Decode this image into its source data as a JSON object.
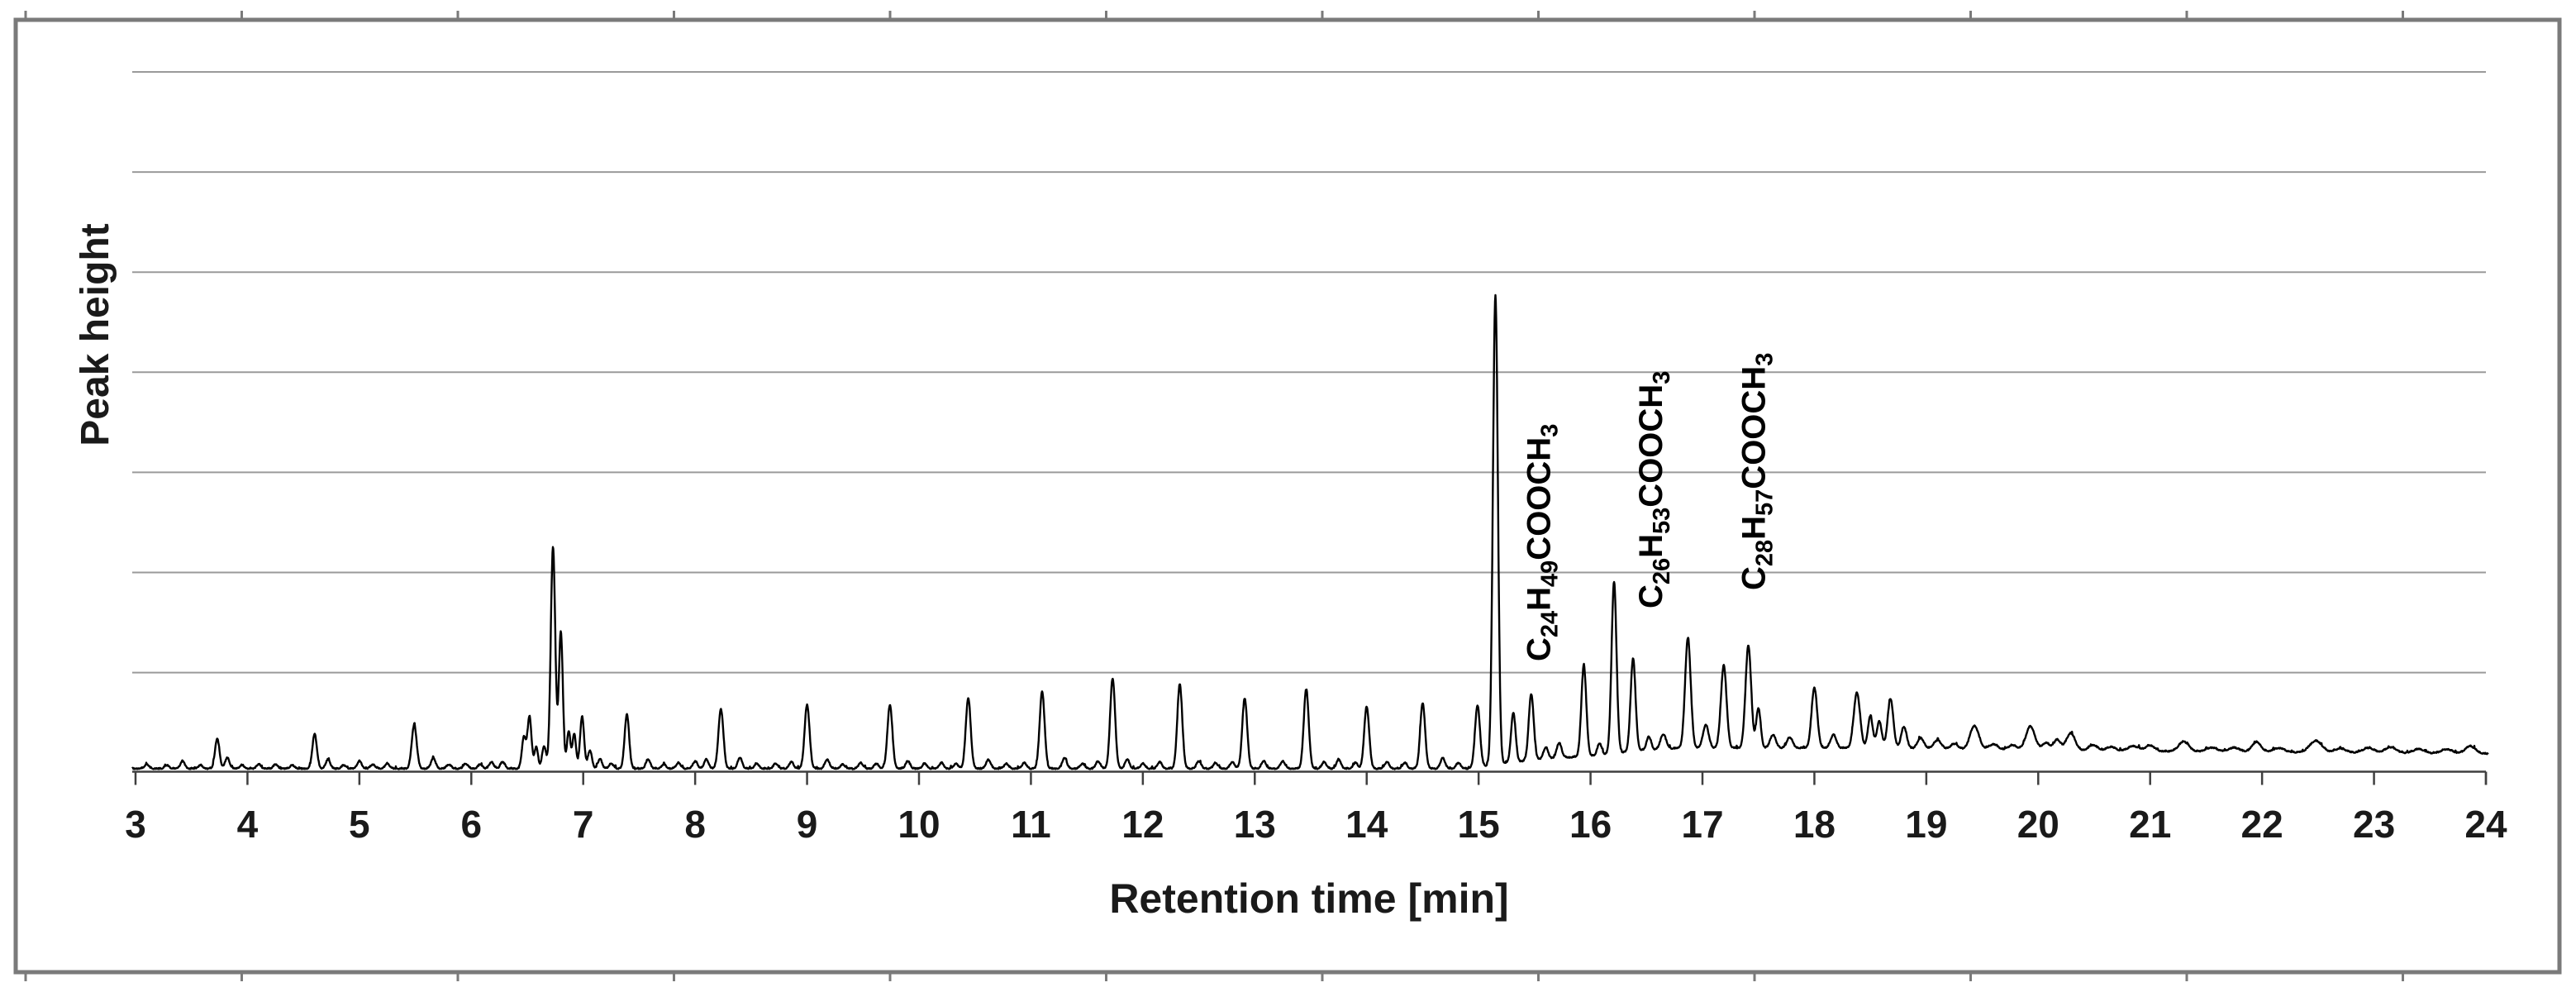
{
  "chart_data": {
    "type": "line",
    "subtype": "gas-chromatogram",
    "title": "",
    "xlabel": "Retention time [min]",
    "ylabel": "Peak height",
    "x_ticks": [
      3,
      4,
      5,
      6,
      7,
      8,
      9,
      10,
      11,
      12,
      13,
      14,
      15,
      16,
      17,
      18,
      19,
      20,
      21,
      22,
      23,
      24
    ],
    "x_range": [
      2.97,
      24.02
    ],
    "y_tick_labels": [],
    "y_gridline_count": 7,
    "grid": true,
    "legend": null,
    "units_note": "peak heights in arbitrary units above local baseline; no numeric y scale shown",
    "baseline_offsets": [
      [
        2.97,
        3
      ],
      [
        14.9,
        3
      ],
      [
        15.25,
        10
      ],
      [
        15.6,
        15
      ],
      [
        16.0,
        18
      ],
      [
        16.45,
        25
      ],
      [
        16.8,
        28
      ],
      [
        18.6,
        28
      ],
      [
        19.2,
        26
      ],
      [
        20.0,
        25
      ],
      [
        21.0,
        24
      ],
      [
        22.0,
        23
      ],
      [
        23.0,
        22
      ],
      [
        24.02,
        21
      ]
    ],
    "peaks": [
      [
        3.1,
        5,
        0.02
      ],
      [
        3.28,
        4,
        0.02
      ],
      [
        3.42,
        9,
        0.02
      ],
      [
        3.58,
        4,
        0.02
      ],
      [
        3.73,
        36,
        0.02
      ],
      [
        3.82,
        13,
        0.02
      ],
      [
        3.95,
        4,
        0.02
      ],
      [
        4.1,
        5,
        0.02
      ],
      [
        4.25,
        5,
        0.02
      ],
      [
        4.4,
        4,
        0.02
      ],
      [
        4.6,
        42,
        0.02
      ],
      [
        4.72,
        11,
        0.02
      ],
      [
        4.86,
        4,
        0.02
      ],
      [
        5.0,
        9,
        0.02
      ],
      [
        5.12,
        5,
        0.02
      ],
      [
        5.25,
        6,
        0.02
      ],
      [
        5.49,
        53,
        0.022
      ],
      [
        5.66,
        13,
        0.02
      ],
      [
        5.8,
        5,
        0.02
      ],
      [
        5.95,
        6,
        0.02
      ],
      [
        6.08,
        5,
        0.02
      ],
      [
        6.18,
        8,
        0.02
      ],
      [
        6.28,
        8,
        0.02
      ],
      [
        6.47,
        38,
        0.018
      ],
      [
        6.52,
        62,
        0.018
      ],
      [
        6.58,
        26,
        0.016
      ],
      [
        6.65,
        27,
        0.018
      ],
      [
        6.73,
        268,
        0.02
      ],
      [
        6.8,
        165,
        0.018
      ],
      [
        6.87,
        45,
        0.016
      ],
      [
        6.92,
        42,
        0.016
      ],
      [
        6.99,
        63,
        0.018
      ],
      [
        7.06,
        22,
        0.018
      ],
      [
        7.15,
        12,
        0.018
      ],
      [
        7.25,
        6,
        0.02
      ],
      [
        7.39,
        66,
        0.02
      ],
      [
        7.58,
        11,
        0.02
      ],
      [
        7.72,
        5,
        0.02
      ],
      [
        7.85,
        7,
        0.02
      ],
      [
        8.0,
        9,
        0.02
      ],
      [
        8.1,
        11,
        0.02
      ],
      [
        8.23,
        72,
        0.022
      ],
      [
        8.4,
        13,
        0.02
      ],
      [
        8.55,
        6,
        0.02
      ],
      [
        8.72,
        6,
        0.02
      ],
      [
        8.86,
        8,
        0.02
      ],
      [
        9.0,
        77,
        0.022
      ],
      [
        9.18,
        11,
        0.02
      ],
      [
        9.32,
        5,
        0.02
      ],
      [
        9.48,
        7,
        0.02
      ],
      [
        9.62,
        6,
        0.02
      ],
      [
        9.74,
        77,
        0.022
      ],
      [
        9.9,
        9,
        0.02
      ],
      [
        10.05,
        6,
        0.02
      ],
      [
        10.2,
        7,
        0.02
      ],
      [
        10.33,
        6,
        0.02
      ],
      [
        10.44,
        85,
        0.022
      ],
      [
        10.62,
        11,
        0.02
      ],
      [
        10.78,
        6,
        0.02
      ],
      [
        10.94,
        7,
        0.02
      ],
      [
        11.1,
        93,
        0.022
      ],
      [
        11.3,
        13,
        0.02
      ],
      [
        11.46,
        6,
        0.02
      ],
      [
        11.6,
        9,
        0.02
      ],
      [
        11.73,
        109,
        0.022
      ],
      [
        11.86,
        11,
        0.02
      ],
      [
        12.0,
        6,
        0.02
      ],
      [
        12.15,
        8,
        0.02
      ],
      [
        12.33,
        102,
        0.022
      ],
      [
        12.5,
        9,
        0.02
      ],
      [
        12.65,
        7,
        0.02
      ],
      [
        12.8,
        8,
        0.02
      ],
      [
        12.91,
        85,
        0.022
      ],
      [
        13.08,
        9,
        0.02
      ],
      [
        13.25,
        9,
        0.02
      ],
      [
        13.46,
        96,
        0.022
      ],
      [
        13.62,
        8,
        0.02
      ],
      [
        13.75,
        11,
        0.02
      ],
      [
        13.9,
        7,
        0.02
      ],
      [
        14.0,
        75,
        0.022
      ],
      [
        14.18,
        8,
        0.02
      ],
      [
        14.34,
        7,
        0.02
      ],
      [
        14.5,
        79,
        0.022
      ],
      [
        14.68,
        13,
        0.02
      ],
      [
        14.82,
        7,
        0.02
      ],
      [
        14.99,
        75,
        0.022
      ],
      [
        15.15,
        568,
        0.022
      ],
      [
        15.31,
        60,
        0.02
      ],
      [
        15.47,
        80,
        0.022
      ],
      [
        15.6,
        14,
        0.02
      ],
      [
        15.72,
        18,
        0.022
      ],
      [
        15.94,
        110,
        0.022
      ],
      [
        16.08,
        14,
        0.02
      ],
      [
        16.21,
        208,
        0.022
      ],
      [
        16.38,
        112,
        0.022
      ],
      [
        16.52,
        16,
        0.02
      ],
      [
        16.65,
        18,
        0.025
      ],
      [
        16.87,
        133,
        0.025
      ],
      [
        17.03,
        28,
        0.025
      ],
      [
        17.19,
        100,
        0.025
      ],
      [
        17.41,
        124,
        0.025
      ],
      [
        17.5,
        48,
        0.02
      ],
      [
        17.63,
        16,
        0.025
      ],
      [
        17.78,
        13,
        0.025
      ],
      [
        18.0,
        73,
        0.025
      ],
      [
        18.17,
        16,
        0.025
      ],
      [
        18.38,
        67,
        0.028
      ],
      [
        18.5,
        38,
        0.022
      ],
      [
        18.58,
        32,
        0.022
      ],
      [
        18.68,
        60,
        0.025
      ],
      [
        18.8,
        26,
        0.025
      ],
      [
        18.95,
        13,
        0.03
      ],
      [
        19.1,
        11,
        0.035
      ],
      [
        19.25,
        7,
        0.035
      ],
      [
        19.43,
        29,
        0.04
      ],
      [
        19.6,
        7,
        0.04
      ],
      [
        19.77,
        6,
        0.04
      ],
      [
        19.93,
        29,
        0.04
      ],
      [
        20.07,
        9,
        0.035
      ],
      [
        20.17,
        13,
        0.03
      ],
      [
        20.29,
        21,
        0.04
      ],
      [
        20.49,
        7,
        0.04
      ],
      [
        20.65,
        5,
        0.04
      ],
      [
        20.85,
        6,
        0.05
      ],
      [
        21.0,
        7,
        0.04
      ],
      [
        21.3,
        12,
        0.045
      ],
      [
        21.55,
        5,
        0.05
      ],
      [
        21.75,
        5,
        0.05
      ],
      [
        21.95,
        12,
        0.04
      ],
      [
        22.15,
        5,
        0.05
      ],
      [
        22.48,
        14,
        0.055
      ],
      [
        22.7,
        5,
        0.05
      ],
      [
        22.95,
        6,
        0.05
      ],
      [
        23.15,
        7,
        0.05
      ],
      [
        23.4,
        5,
        0.05
      ],
      [
        23.65,
        5,
        0.05
      ],
      [
        23.86,
        9,
        0.045
      ]
    ],
    "labeled_peaks": [
      {
        "plain": "C24H49COOCH3",
        "parts": [
          [
            "C",
            false
          ],
          [
            "24",
            true
          ],
          [
            "H",
            false
          ],
          [
            "49",
            true
          ],
          [
            "COOCH",
            false
          ],
          [
            "3",
            true
          ]
        ],
        "peak_retention_min": 15.15,
        "label_t": 15.55,
        "label_bottom_y": 800
      },
      {
        "plain": "C26H53COOCH3",
        "parts": [
          [
            "C",
            false
          ],
          [
            "26",
            true
          ],
          [
            "H",
            false
          ],
          [
            "53",
            true
          ],
          [
            "COOCH",
            false
          ],
          [
            "3",
            true
          ]
        ],
        "peak_retention_min": 16.21,
        "label_t": 16.55,
        "label_bottom_y": 736
      },
      {
        "plain": "C28H57COOCH3",
        "parts": [
          [
            "C",
            false
          ],
          [
            "28",
            true
          ],
          [
            "H",
            false
          ],
          [
            "57",
            true
          ],
          [
            "COOCH",
            false
          ],
          [
            "3",
            true
          ]
        ],
        "peak_retention_min": 17.41,
        "label_t": 17.47,
        "label_bottom_y": 714
      }
    ],
    "colors": {
      "trace": "#000000",
      "gridline": "#9a9a9a",
      "axis": "#3f3f3f",
      "frame_border": "#7a7a7a",
      "text": "#1a1a1a",
      "background": "#ffffff"
    }
  }
}
